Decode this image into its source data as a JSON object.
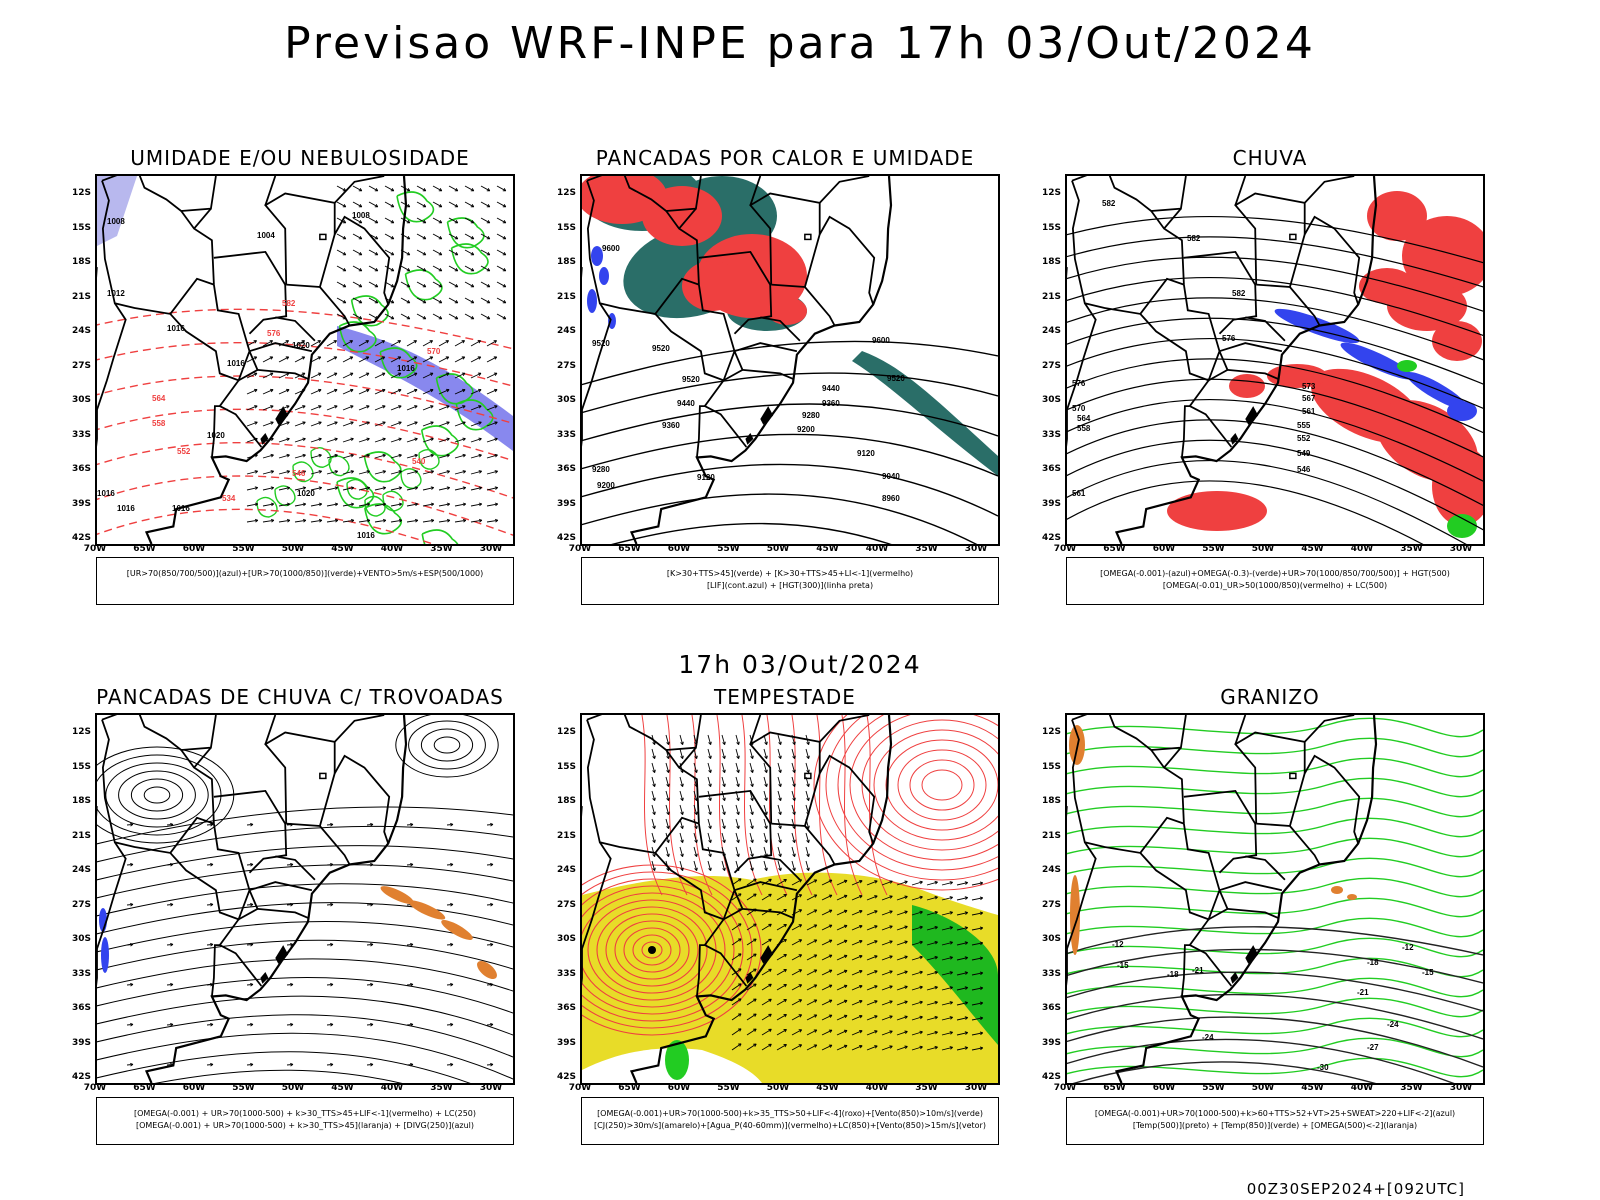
{
  "title": "Previsao WRF-INPE  para 17h 03/Out/2024",
  "subtitle": "17h 03/Out/2024",
  "footer": "00Z30SEP2024+[092UTC]",
  "lat_labels": [
    "12S",
    "15S",
    "18S",
    "21S",
    "24S",
    "27S",
    "30S",
    "33S",
    "36S",
    "39S",
    "42S"
  ],
  "lon_labels": [
    "70W",
    "65W",
    "60W",
    "55W",
    "50W",
    "45W",
    "40W",
    "35W",
    "30W"
  ],
  "panels": [
    {
      "title": "UMIDADE E/OU NEBULOSIDADE",
      "legend": [
        "[UR>70(850/700/500)](azul)+[UR>70(1000/850)](verde)+VENTO>5m/s+ESP(500/1000)"
      ],
      "fields": [
        "isobars",
        "wind-vectors",
        "thickness-dashed",
        "moisture-band"
      ]
    },
    {
      "title": "PANCADAS POR CALOR E UMIDADE",
      "legend": [
        "[K>30+TTS>45](verde) + [K>30+TTS>45+LI<-1](vermelho)",
        "[LIF](cont.azul) + [HGT(300)](linha preta)"
      ],
      "fields": [
        "hgt300-contours",
        "convective-red",
        "convective-teal"
      ]
    },
    {
      "title": "CHUVA",
      "legend": [
        "[OMEGA(-0.001)-(azul)+OMEGA(-0.3)-(verde)+UR>70(1000/850/700/500)] + HGT(500)",
        "[OMEGA(-0.01)_UR>50(1000/850)(vermelho) + LC(500)"
      ],
      "fields": [
        "hgt500-contours",
        "rain-red",
        "rain-blue"
      ]
    },
    {
      "title": "PANCADAS DE CHUVA C/ TROVOADAS",
      "legend": [
        "[OMEGA(-0.001) + UR>70(1000-500) + k>30_TTS>45+LIF<-1](vermelho) + LC(250)",
        "[OMEGA(-0.001) + UR>70(1000-500) + k>30_TTS>45](laranja) + [DIVG(250)](azul)"
      ],
      "fields": [
        "streamlines-250",
        "orange-band"
      ]
    },
    {
      "title": "TEMPESTADE",
      "legend": [
        "[OMEGA(-0.001)+UR>70(1000-500)+k>35_TTS>50+LIF<-4](roxo)+[Vento(850)>10m/s](verde)",
        "[CJ(250)>30m/s](amarelo)+[Agua_P(40-60mm)](vermelho)+LC(850)+[Vento(850)>15m/s](vetor)"
      ],
      "fields": [
        "yellow-jet",
        "red-streamlines",
        "green-wind"
      ]
    },
    {
      "title": "GRANIZO",
      "legend": [
        "[OMEGA(-0.001)+UR>70(1000-500)+k>60+TTS>52+VT>25+SWEAT>220+LIF<-2](azul)",
        "[Temp(500)](preto) + [Temp(850)](verde) + [OMEGA(500)<-2](laranja)"
      ],
      "fields": [
        "temp500-contours",
        "temp850-green"
      ]
    }
  ],
  "contour_labels": {
    "p1": [
      "1008",
      "1004",
      "1012",
      "1016",
      "1020",
      "582",
      "576",
      "570",
      "564",
      "558",
      "552",
      "546",
      "540",
      "534"
    ],
    "p2": [
      "9600",
      "9520",
      "9440",
      "9360",
      "9280",
      "9200",
      "9120",
      "9040",
      "8960"
    ],
    "p3": [
      "582",
      "576",
      "573",
      "570",
      "567",
      "564",
      "561",
      "558",
      "555",
      "552",
      "549",
      "546"
    ],
    "p6": [
      "-12",
      "-15",
      "-18",
      "-21",
      "-24",
      "-27",
      "-30"
    ]
  },
  "colors": {
    "red": "#ef4040",
    "green": "#22cc22",
    "blue": "#3344ee",
    "lightblue": "#8888ee",
    "teal": "#2a6e68",
    "yellow": "#e8dc28",
    "orange": "#e08030",
    "black": "#000000"
  }
}
